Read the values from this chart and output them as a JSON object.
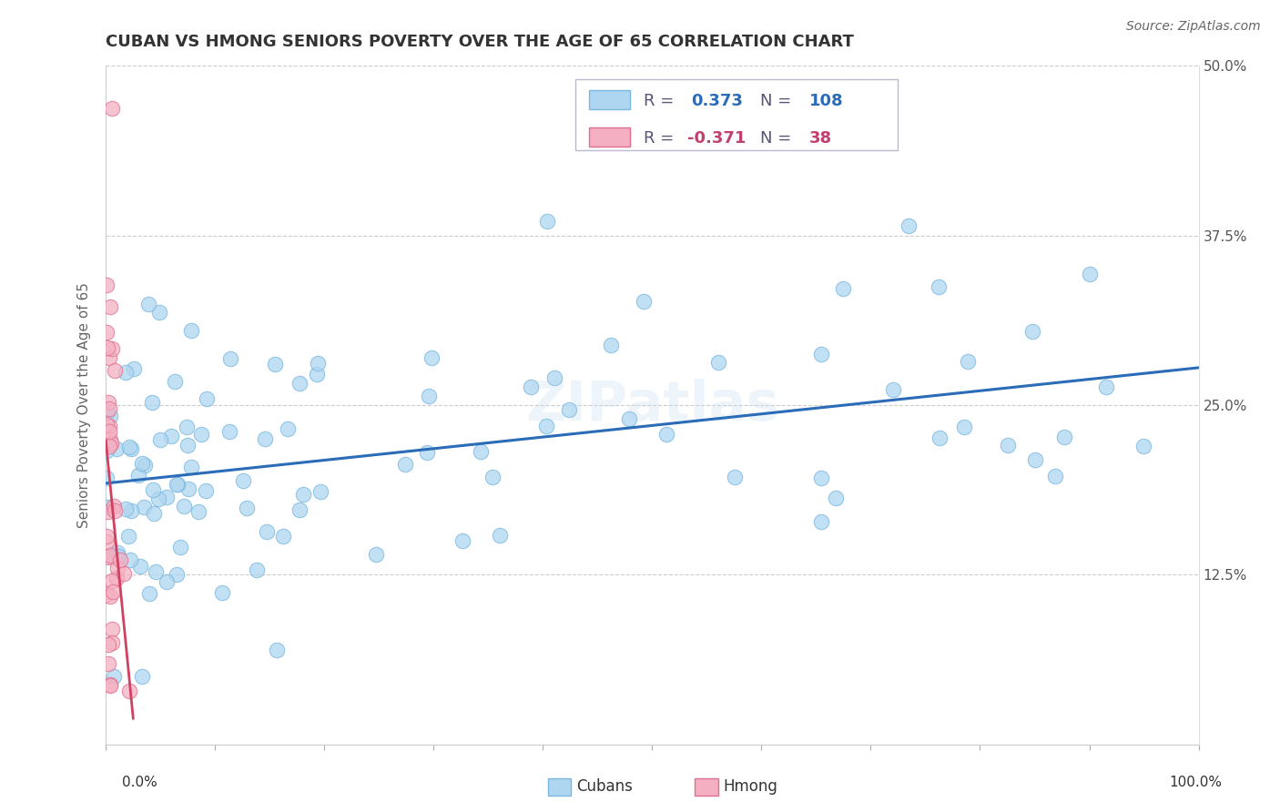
{
  "title": "CUBAN VS HMONG SENIORS POVERTY OVER THE AGE OF 65 CORRELATION CHART",
  "source": "Source: ZipAtlas.com",
  "ylabel": "Seniors Poverty Over the Age of 65",
  "xlim": [
    0,
    1.0
  ],
  "ylim": [
    0,
    0.5
  ],
  "ytick_vals": [
    0.0,
    0.125,
    0.25,
    0.375,
    0.5
  ],
  "yticklabels_right": [
    "",
    "12.5%",
    "25.0%",
    "37.5%",
    "50.0%"
  ],
  "cubans_R": 0.373,
  "cubans_N": 108,
  "hmong_R": -0.371,
  "hmong_N": 38,
  "cuban_color": "#aed6f0",
  "cuban_edge": "#7ab8e0",
  "hmong_color": "#f4b0c2",
  "hmong_edge": "#e07090",
  "line_color": "#2b6cb8",
  "hmong_line_color": "#d04060",
  "watermark": "ZIPatlas",
  "title_fontsize": 13,
  "axis_label_fontsize": 11,
  "tick_fontsize": 11,
  "legend_fontsize": 13,
  "legend_color_blue": "#2b6cb8",
  "legend_color_pink": "#c04070",
  "legend_color_gray": "#555577"
}
